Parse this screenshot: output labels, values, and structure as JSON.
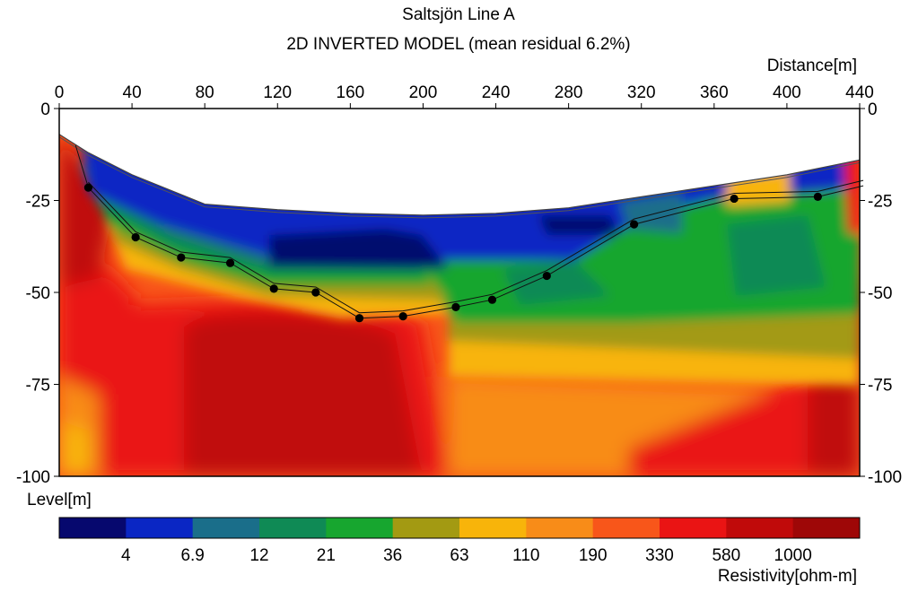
{
  "chart_data": {
    "type": "heatmap",
    "title": "Saltsjön Line  A",
    "subtitle": "2D INVERTED MODEL (mean residual 6.2%)",
    "xlabel": "Distance[m]",
    "ylabel": "Level[m]",
    "xlim": [
      0,
      440
    ],
    "ylim": [
      -100,
      0
    ],
    "x_ticks": [
      0,
      40,
      80,
      120,
      160,
      200,
      240,
      280,
      320,
      360,
      400,
      440
    ],
    "y_ticks": [
      0,
      -25,
      -50,
      -75,
      -100
    ],
    "legend": {
      "label": "Resistivity[ohm-m]",
      "placement": "bottom",
      "colors": [
        "#06086e",
        "#0a26c4",
        "#1a6e8a",
        "#0f8a55",
        "#17a62f",
        "#a39a12",
        "#f8b40a",
        "#f88c18",
        "#f8561a",
        "#ea1414",
        "#c00a0a",
        "#9e0707"
      ],
      "tick_labels": [
        "4",
        "6.9",
        "12",
        "21",
        "36",
        "63",
        "110",
        "190",
        "330",
        "580",
        "1000"
      ]
    },
    "surface": [
      [
        0,
        -7
      ],
      [
        16,
        -12
      ],
      [
        40,
        -18
      ],
      [
        60,
        -22
      ],
      [
        80,
        -26
      ],
      [
        120,
        -27.5
      ],
      [
        160,
        -28.5
      ],
      [
        200,
        -29
      ],
      [
        240,
        -28.5
      ],
      [
        280,
        -27
      ],
      [
        320,
        -24
      ],
      [
        360,
        -21
      ],
      [
        400,
        -18
      ],
      [
        440,
        -14
      ]
    ],
    "interpreted_boundary": {
      "points": [
        [
          16,
          -21.5
        ],
        [
          42,
          -35
        ],
        [
          67,
          -40.5
        ],
        [
          94,
          -42
        ],
        [
          118,
          -49
        ],
        [
          141,
          -50
        ],
        [
          165,
          -57
        ],
        [
          189,
          -56.5
        ],
        [
          218,
          -54
        ],
        [
          238,
          -52
        ],
        [
          268,
          -45.5
        ],
        [
          316,
          -31.5
        ],
        [
          371,
          -24.5
        ],
        [
          417,
          -24
        ],
        [
          442,
          -21
        ]
      ]
    }
  }
}
